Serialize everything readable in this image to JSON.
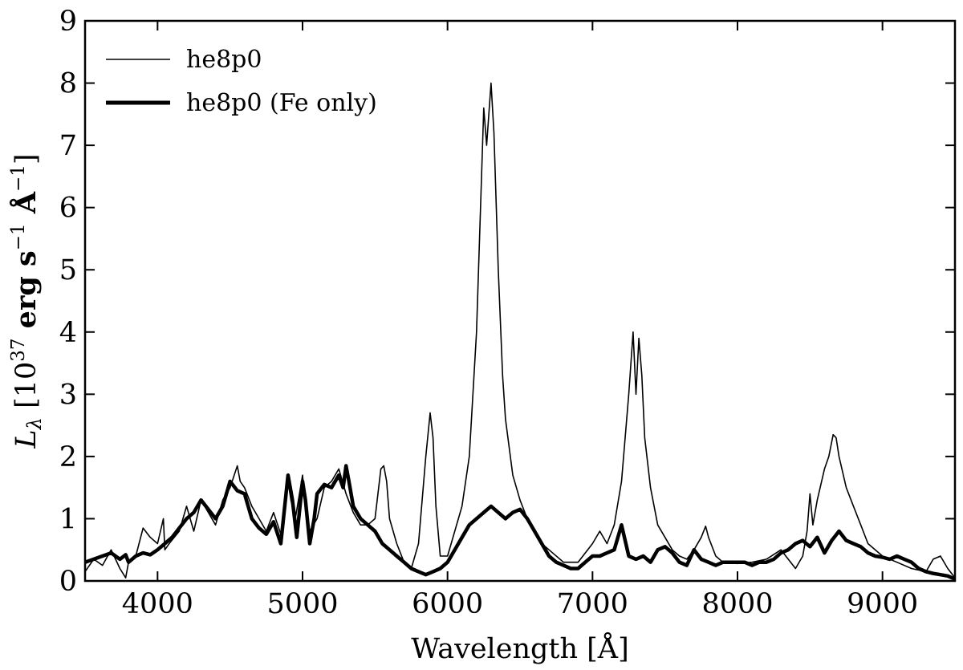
{
  "chart_data": {
    "type": "line",
    "xlabel": "Wavelength [Å]",
    "ylabel": {
      "symbol": "L",
      "subscript": "λ",
      "prefix": " [10",
      "exponent": "37",
      "units": " erg s",
      "exp_s": "−1",
      "angstrom": " Å",
      "exp_a": "−1",
      "suffix": "]"
    },
    "xlim": [
      3500,
      9500
    ],
    "ylim": [
      0,
      9
    ],
    "xticks": [
      4000,
      5000,
      6000,
      7000,
      8000,
      9000
    ],
    "yticks": [
      0,
      1,
      2,
      3,
      4,
      5,
      6,
      7,
      8,
      9
    ],
    "grid": false,
    "legend_position": "top-left",
    "series": [
      {
        "name": "he8p0",
        "style": "thin",
        "color": "#000000",
        "x": [
          3500,
          3560,
          3620,
          3680,
          3740,
          3780,
          3800,
          3850,
          3900,
          3950,
          4000,
          4040,
          4050,
          4080,
          4150,
          4200,
          4250,
          4300,
          4350,
          4400,
          4450,
          4500,
          4550,
          4570,
          4600,
          4650,
          4700,
          4750,
          4800,
          4850,
          4900,
          4920,
          4950,
          5000,
          5020,
          5050,
          5100,
          5150,
          5200,
          5250,
          5300,
          5350,
          5400,
          5450,
          5500,
          5540,
          5560,
          5580,
          5600,
          5650,
          5700,
          5750,
          5800,
          5850,
          5880,
          5900,
          5920,
          5950,
          6000,
          6050,
          6100,
          6150,
          6200,
          6250,
          6270,
          6300,
          6320,
          6350,
          6380,
          6400,
          6450,
          6500,
          6550,
          6600,
          6650,
          6700,
          6800,
          6900,
          7000,
          7050,
          7100,
          7150,
          7200,
          7250,
          7280,
          7300,
          7320,
          7340,
          7360,
          7400,
          7450,
          7500,
          7550,
          7600,
          7650,
          7700,
          7750,
          7780,
          7800,
          7850,
          7900,
          8000,
          8100,
          8200,
          8300,
          8350,
          8400,
          8450,
          8480,
          8500,
          8520,
          8550,
          8600,
          8630,
          8660,
          8680,
          8700,
          8750,
          8800,
          8850,
          8900,
          9000,
          9100,
          9200,
          9300,
          9350,
          9400,
          9450,
          9500
        ],
        "y": [
          0.15,
          0.35,
          0.25,
          0.5,
          0.2,
          0.05,
          0.3,
          0.4,
          0.85,
          0.7,
          0.6,
          1.0,
          0.5,
          0.6,
          0.8,
          1.2,
          0.8,
          1.3,
          1.1,
          0.9,
          1.3,
          1.5,
          1.85,
          1.6,
          1.5,
          1.2,
          1.0,
          0.8,
          1.1,
          0.75,
          1.6,
          1.3,
          1.0,
          1.7,
          1.2,
          0.8,
          1.0,
          1.5,
          1.6,
          1.8,
          1.4,
          1.1,
          0.9,
          0.9,
          1.0,
          1.8,
          1.85,
          1.6,
          1.0,
          0.6,
          0.3,
          0.2,
          0.6,
          2.0,
          2.7,
          2.3,
          1.2,
          0.4,
          0.4,
          0.8,
          1.2,
          2.0,
          4.0,
          7.6,
          7.0,
          8.0,
          7.2,
          5.0,
          3.3,
          2.6,
          1.7,
          1.3,
          1.0,
          0.8,
          0.6,
          0.5,
          0.3,
          0.3,
          0.6,
          0.8,
          0.6,
          0.9,
          1.6,
          3.0,
          4.0,
          3.0,
          3.9,
          3.3,
          2.3,
          1.5,
          0.9,
          0.7,
          0.5,
          0.4,
          0.35,
          0.5,
          0.7,
          0.88,
          0.7,
          0.4,
          0.3,
          0.28,
          0.3,
          0.35,
          0.5,
          0.35,
          0.2,
          0.4,
          0.8,
          1.4,
          0.9,
          1.3,
          1.8,
          2.0,
          2.35,
          2.3,
          2.0,
          1.5,
          1.2,
          0.9,
          0.6,
          0.4,
          0.3,
          0.2,
          0.15,
          0.35,
          0.4,
          0.2,
          0.05
        ]
      },
      {
        "name": "he8p0 (Fe only)",
        "style": "thick",
        "color": "#000000",
        "x": [
          3500,
          3560,
          3620,
          3680,
          3740,
          3780,
          3800,
          3850,
          3900,
          3950,
          4000,
          4050,
          4100,
          4150,
          4200,
          4250,
          4300,
          4350,
          4400,
          4450,
          4500,
          4550,
          4600,
          4650,
          4700,
          4750,
          4800,
          4850,
          4900,
          4930,
          4960,
          5000,
          5020,
          5050,
          5080,
          5100,
          5150,
          5200,
          5250,
          5280,
          5300,
          5320,
          5350,
          5400,
          5450,
          5500,
          5550,
          5600,
          5650,
          5700,
          5750,
          5800,
          5850,
          5900,
          5950,
          6000,
          6050,
          6100,
          6150,
          6200,
          6250,
          6300,
          6350,
          6400,
          6450,
          6500,
          6550,
          6600,
          6650,
          6700,
          6750,
          6800,
          6850,
          6900,
          6950,
          7000,
          7050,
          7100,
          7150,
          7200,
          7250,
          7300,
          7350,
          7400,
          7450,
          7500,
          7550,
          7600,
          7650,
          7700,
          7750,
          7800,
          7850,
          7900,
          7950,
          8000,
          8050,
          8100,
          8150,
          8200,
          8250,
          8300,
          8350,
          8400,
          8450,
          8500,
          8550,
          8600,
          8650,
          8700,
          8750,
          8800,
          8850,
          8900,
          8950,
          9000,
          9050,
          9100,
          9150,
          9200,
          9250,
          9300,
          9350,
          9400,
          9450,
          9500
        ],
        "y": [
          0.3,
          0.35,
          0.4,
          0.45,
          0.35,
          0.42,
          0.3,
          0.4,
          0.45,
          0.42,
          0.5,
          0.6,
          0.7,
          0.85,
          1.0,
          1.1,
          1.3,
          1.15,
          1.0,
          1.2,
          1.6,
          1.45,
          1.4,
          1.0,
          0.85,
          0.75,
          0.95,
          0.6,
          1.7,
          1.3,
          0.7,
          1.6,
          1.3,
          0.6,
          1.0,
          1.4,
          1.55,
          1.5,
          1.7,
          1.5,
          1.85,
          1.6,
          1.2,
          1.0,
          0.9,
          0.8,
          0.6,
          0.5,
          0.4,
          0.3,
          0.2,
          0.15,
          0.1,
          0.15,
          0.2,
          0.3,
          0.5,
          0.7,
          0.9,
          1.0,
          1.1,
          1.2,
          1.1,
          1.0,
          1.1,
          1.15,
          1.0,
          0.8,
          0.6,
          0.4,
          0.3,
          0.25,
          0.2,
          0.2,
          0.3,
          0.4,
          0.4,
          0.45,
          0.5,
          0.9,
          0.4,
          0.35,
          0.4,
          0.3,
          0.5,
          0.55,
          0.45,
          0.3,
          0.25,
          0.5,
          0.35,
          0.3,
          0.25,
          0.3,
          0.3,
          0.3,
          0.3,
          0.25,
          0.3,
          0.3,
          0.35,
          0.45,
          0.5,
          0.6,
          0.65,
          0.55,
          0.7,
          0.45,
          0.65,
          0.8,
          0.65,
          0.6,
          0.55,
          0.45,
          0.4,
          0.38,
          0.35,
          0.4,
          0.35,
          0.3,
          0.2,
          0.15,
          0.12,
          0.1,
          0.08,
          0.03
        ]
      }
    ]
  }
}
